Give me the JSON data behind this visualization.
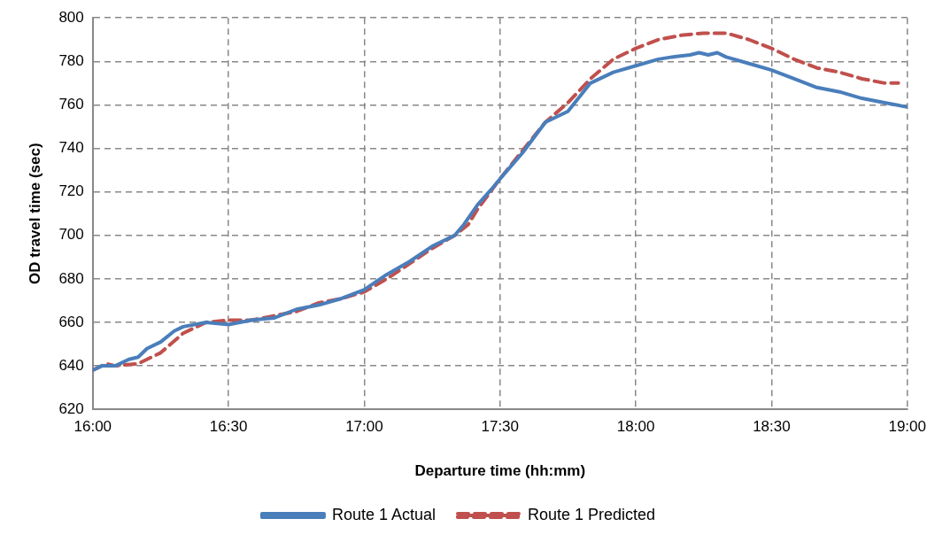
{
  "chart_data": {
    "type": "line",
    "xlabel": "Departure time (hh:mm)",
    "ylabel": "OD travel time (sec)",
    "xlim": [
      16,
      19
    ],
    "xticks": [
      {
        "value": 16,
        "label": "16:00"
      },
      {
        "value": 16.5,
        "label": "16:30"
      },
      {
        "value": 17,
        "label": "17:00"
      },
      {
        "value": 17.5,
        "label": "17:30"
      },
      {
        "value": 18,
        "label": "18:00"
      },
      {
        "value": 18.5,
        "label": "18:30"
      },
      {
        "value": 19,
        "label": "19:00"
      }
    ],
    "ylim": [
      620,
      800
    ],
    "yticks": [
      620,
      640,
      660,
      680,
      700,
      720,
      740,
      760,
      780,
      800
    ],
    "grid": true,
    "legend": "bottom",
    "marker": "none",
    "series": [
      {
        "name": "Route 1 Actual",
        "color": "#4a7ebb",
        "line_style": "solid",
        "x": [
          16,
          16.033,
          16.083,
          16.133,
          16.167,
          16.2,
          16.25,
          16.3,
          16.333,
          16.417,
          16.5,
          16.583,
          16.667,
          16.75,
          16.833,
          16.917,
          17,
          17.083,
          17.167,
          17.25,
          17.333,
          17.367,
          17.417,
          17.467,
          17.5,
          17.583,
          17.667,
          17.75,
          17.833,
          17.917,
          18,
          18.083,
          18.133,
          18.2,
          18.233,
          18.267,
          18.3,
          18.333,
          18.417,
          18.5,
          18.583,
          18.667,
          18.75,
          18.833,
          18.917,
          19
        ],
        "values": [
          638,
          640,
          640,
          643,
          644,
          648,
          651,
          656,
          658,
          660,
          659,
          661,
          662,
          666,
          668,
          671,
          675,
          682,
          688,
          695,
          700,
          705,
          714,
          721,
          726,
          738,
          752,
          757,
          770,
          775,
          778,
          781,
          782,
          783,
          784,
          783,
          784,
          782,
          779,
          776,
          772,
          768,
          766,
          763,
          761,
          759
        ]
      },
      {
        "name": "Route 1 Predicted",
        "color": "#c0504d",
        "line_style": "dashed",
        "x": [
          16,
          16.05,
          16.083,
          16.167,
          16.25,
          16.333,
          16.417,
          16.5,
          16.583,
          16.667,
          16.75,
          16.833,
          16.917,
          17,
          17.083,
          17.167,
          17.25,
          17.333,
          17.383,
          17.417,
          17.5,
          17.583,
          17.667,
          17.75,
          17.833,
          17.917,
          18,
          18.083,
          18.167,
          18.25,
          18.333,
          18.417,
          18.5,
          18.583,
          18.667,
          18.75,
          18.833,
          18.917,
          18.967
        ],
        "values": [
          638,
          641,
          640,
          641,
          646,
          655,
          660,
          661,
          661,
          663,
          665,
          669,
          671,
          674,
          680,
          687,
          694,
          700,
          705,
          712,
          726,
          739,
          752,
          761,
          772,
          781,
          786,
          790,
          792,
          793,
          793,
          790,
          786,
          781,
          777,
          775,
          772,
          770,
          770
        ]
      }
    ]
  }
}
